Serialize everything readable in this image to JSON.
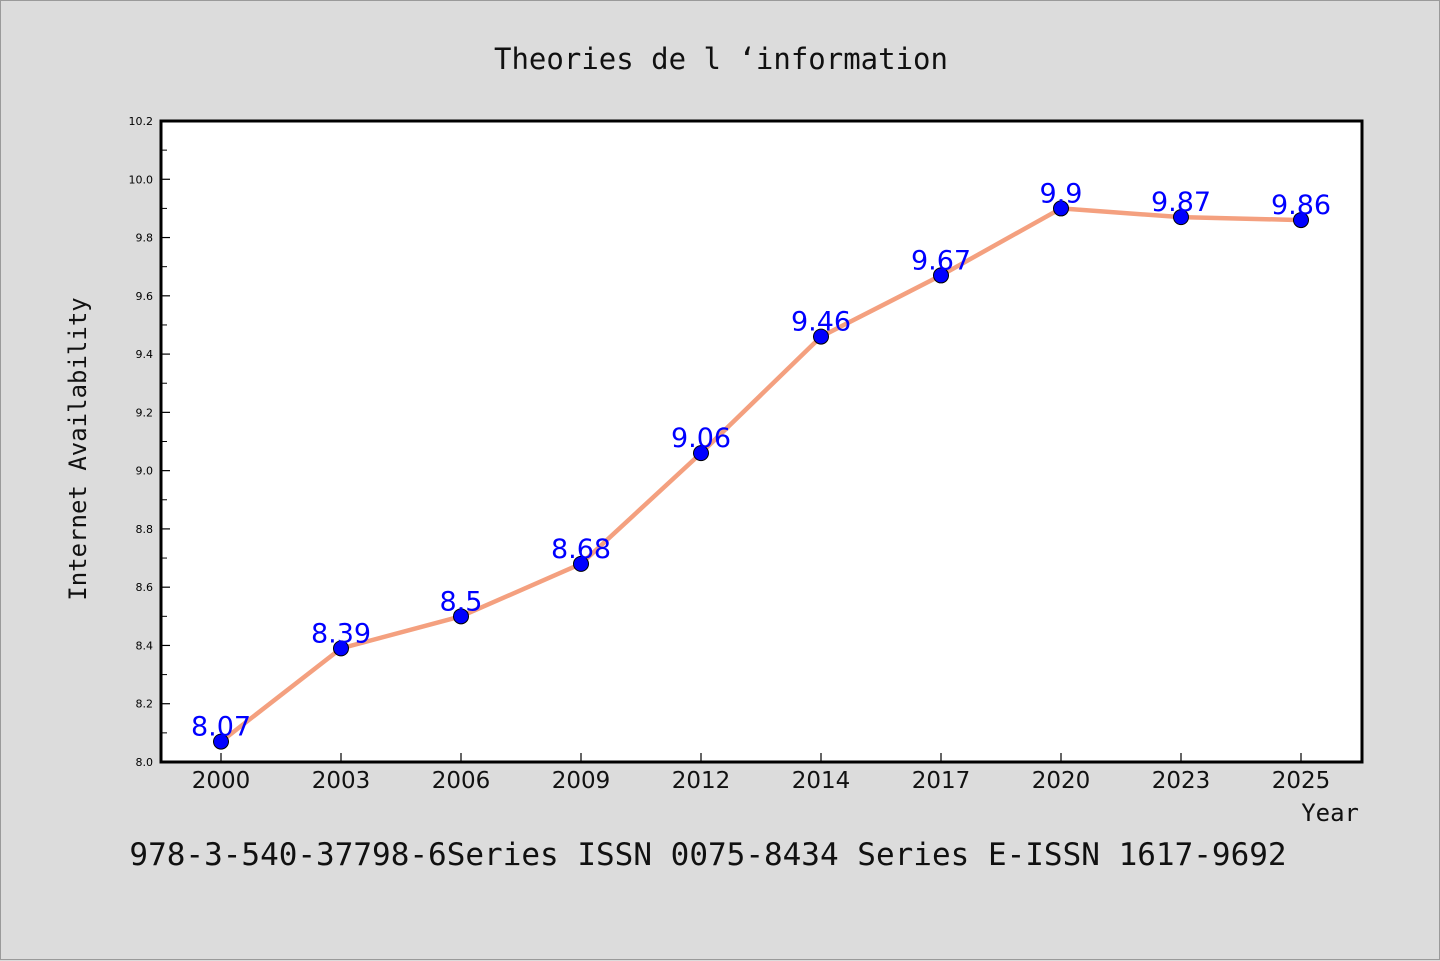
{
  "chart_data": {
    "type": "line",
    "title": "Theories de l ‘information",
    "xlabel": "Year",
    "ylabel": "Internet Availability",
    "categories": [
      "2000",
      "2003",
      "2006",
      "2009",
      "2012",
      "2014",
      "2017",
      "2020",
      "2023",
      "2025"
    ],
    "values": [
      8.07,
      8.39,
      8.5,
      8.68,
      9.06,
      9.46,
      9.67,
      9.9,
      9.87,
      9.86
    ],
    "data_labels": [
      "8.07",
      "8.39",
      "8.5",
      "8.68",
      "9.06",
      "9.46",
      "9.67",
      "9.9",
      "9.87",
      "9.86"
    ],
    "ylim": [
      8.0,
      10.2
    ],
    "y_ticks": [
      "8.0",
      "8.2",
      "8.4",
      "8.6",
      "8.8",
      "9.0",
      "9.2",
      "9.4",
      "9.6",
      "9.8",
      "10.0",
      "10.2"
    ],
    "grid": false,
    "colors": {
      "line": "#f4a07f",
      "marker": "#0000ff",
      "label": "#0000ff"
    }
  },
  "caption": "978-3-540-37798-6Series ISSN 0075-8434 Series E-ISSN 1617-9692"
}
